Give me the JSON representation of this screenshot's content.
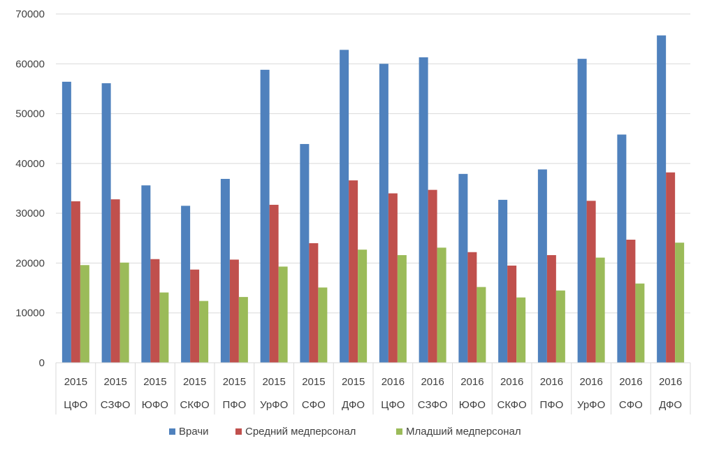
{
  "chart_data": {
    "type": "bar",
    "title": "",
    "xlabel": "",
    "ylabel": "",
    "ylim": [
      0,
      70000
    ],
    "yticks": [
      0,
      10000,
      20000,
      30000,
      40000,
      50000,
      60000,
      70000
    ],
    "ytick_labels": [
      "0",
      "10000",
      "20000",
      "30000",
      "40000",
      "50000",
      "60000",
      "70000"
    ],
    "grid": true,
    "legend_position": "bottom",
    "categories": [
      {
        "year": "2015",
        "region": "ЦФО"
      },
      {
        "year": "2015",
        "region": "СЗФО"
      },
      {
        "year": "2015",
        "region": "ЮФО"
      },
      {
        "year": "2015",
        "region": "СКФО"
      },
      {
        "year": "2015",
        "region": "ПФО"
      },
      {
        "year": "2015",
        "region": "УрФО"
      },
      {
        "year": "2015",
        "region": "СФО"
      },
      {
        "year": "2015",
        "region": "ДФО"
      },
      {
        "year": "2016",
        "region": "ЦФО"
      },
      {
        "year": "2016",
        "region": "СЗФО"
      },
      {
        "year": "2016",
        "region": "ЮФО"
      },
      {
        "year": "2016",
        "region": "СКФО"
      },
      {
        "year": "2016",
        "region": "ПФО"
      },
      {
        "year": "2016",
        "region": "УрФО"
      },
      {
        "year": "2016",
        "region": "СФО"
      },
      {
        "year": "2016",
        "region": "ДФО"
      }
    ],
    "series": [
      {
        "name": "Врачи",
        "color": "#4f81bd",
        "values": [
          56400,
          56100,
          35600,
          31500,
          36900,
          58800,
          43900,
          62800,
          60000,
          61300,
          37900,
          32700,
          38800,
          61000,
          45800,
          65700
        ]
      },
      {
        "name": "Средний медперсонал",
        "color": "#c0504d",
        "values": [
          32400,
          32800,
          20800,
          18700,
          20700,
          31700,
          24000,
          36600,
          34000,
          34700,
          22200,
          19500,
          21600,
          32500,
          24700,
          38200
        ]
      },
      {
        "name": "Младший медперсонал",
        "color": "#9bbb59",
        "values": [
          19600,
          20100,
          14100,
          12400,
          13200,
          19300,
          15100,
          22700,
          21600,
          23100,
          15200,
          13100,
          14500,
          21100,
          15900,
          24100
        ]
      }
    ]
  }
}
